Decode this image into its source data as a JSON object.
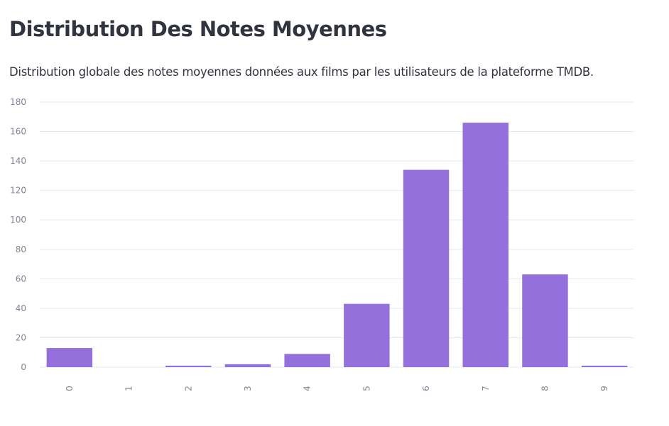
{
  "header": {
    "title": "Distribution Des Notes Moyennes",
    "subtitle": "Distribution globale des notes moyennes données aux films par les utilisateurs de la plateforme TMDB."
  },
  "colors": {
    "bar": "#9370db",
    "grid": "#e6e9ef",
    "tick_text": "#808495",
    "text": "#31333f"
  },
  "chart_data": {
    "type": "bar",
    "title": "",
    "xlabel": "",
    "ylabel": "",
    "categories": [
      "0",
      "1",
      "2",
      "3",
      "4",
      "5",
      "6",
      "7",
      "8",
      "9"
    ],
    "values": [
      13,
      0,
      1,
      2,
      9,
      43,
      134,
      166,
      63,
      1
    ],
    "ylim": [
      0,
      180
    ],
    "yticks": [
      0,
      20,
      40,
      60,
      80,
      100,
      120,
      140,
      160,
      180
    ],
    "grid": true,
    "x_tick_rotation": "vertical"
  }
}
